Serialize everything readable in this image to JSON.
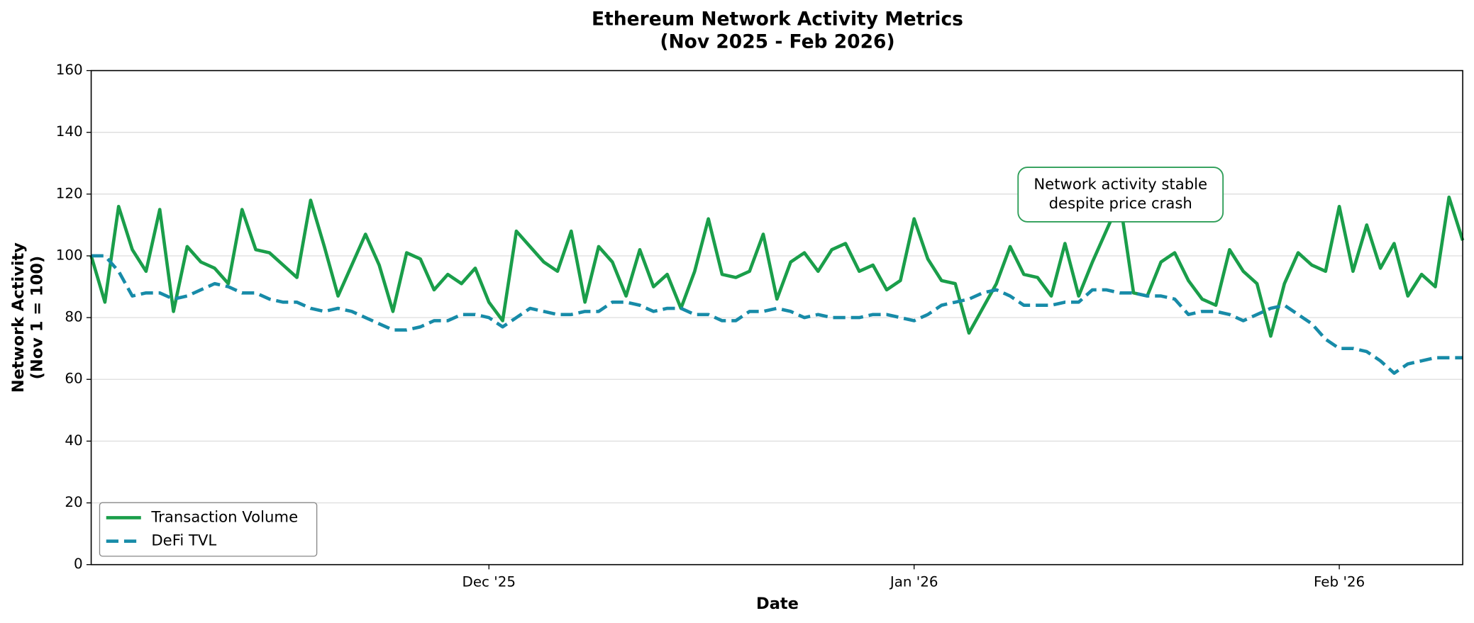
{
  "chart_data": {
    "type": "line",
    "title": "Ethereum Network Activity Metrics",
    "subtitle": "(Nov 2025 - Feb 2026)",
    "xlabel": "Date",
    "ylabel": [
      "Network Activity",
      "(Nov 1 = 100)"
    ],
    "annotation": [
      "Network activity stable",
      "despite price crash"
    ],
    "x": [
      0,
      1,
      2,
      3,
      4,
      5,
      6,
      7,
      8,
      9,
      10,
      11,
      12,
      13,
      14,
      15,
      16,
      17,
      18,
      19,
      20,
      21,
      22,
      23,
      24,
      25,
      26,
      27,
      28,
      29,
      30,
      31,
      32,
      33,
      34,
      35,
      36,
      37,
      38,
      39,
      40,
      41,
      42,
      43,
      44,
      45,
      46,
      47,
      48,
      49,
      50,
      51,
      52,
      53,
      54,
      55,
      56,
      57,
      58,
      59,
      60,
      61,
      62,
      63,
      64,
      65,
      66,
      67,
      68,
      69,
      70,
      71,
      72,
      73,
      74,
      75,
      76,
      77,
      78,
      79,
      80,
      81,
      82,
      83,
      84,
      85,
      86,
      87,
      88,
      89,
      90,
      91,
      92,
      93,
      94,
      95,
      96,
      97,
      98,
      99,
      100
    ],
    "xlim": [
      0,
      100
    ],
    "xticks": [
      {
        "value": 29,
        "label": "Dec '25"
      },
      {
        "value": 60,
        "label": "Jan '26"
      },
      {
        "value": 91,
        "label": "Feb '26"
      }
    ],
    "ylim": [
      0,
      160
    ],
    "yticks": [
      0,
      20,
      40,
      60,
      80,
      100,
      120,
      140,
      160
    ],
    "grid": true,
    "legend": "lower left",
    "series": [
      {
        "name": "Transaction Volume",
        "color": "#1a9e4a",
        "dash": false,
        "values": [
          100,
          85,
          116,
          102,
          95,
          115,
          82,
          103,
          98,
          96,
          91,
          115,
          102,
          101,
          97,
          93,
          118,
          103,
          87,
          97,
          107,
          97,
          82,
          101,
          99,
          89,
          94,
          91,
          96,
          85,
          79,
          108,
          103,
          98,
          95,
          108,
          85,
          103,
          98,
          87,
          102,
          90,
          94,
          83,
          95,
          112,
          94,
          93,
          95,
          107,
          86,
          98,
          101,
          95,
          102,
          104,
          95,
          97,
          89,
          92,
          112,
          99,
          92,
          91,
          75,
          83,
          91,
          103,
          94,
          93,
          87,
          104,
          87,
          98,
          108,
          118,
          88,
          87,
          98,
          101,
          92,
          86,
          84,
          102,
          95,
          91,
          74,
          91,
          101,
          97,
          95,
          116,
          95,
          110,
          96,
          104,
          87,
          94,
          90,
          119,
          105
        ]
      },
      {
        "name": "DeFi TVL",
        "color": "#178ba8",
        "dash": true,
        "values": [
          100,
          100,
          95,
          87,
          88,
          88,
          86,
          87,
          89,
          91,
          90,
          88,
          88,
          86,
          85,
          85,
          83,
          82,
          83,
          82,
          80,
          78,
          76,
          76,
          77,
          79,
          79,
          81,
          81,
          80,
          77,
          80,
          83,
          82,
          81,
          81,
          82,
          82,
          85,
          85,
          84,
          82,
          83,
          83,
          81,
          81,
          79,
          79,
          82,
          82,
          83,
          82,
          80,
          81,
          80,
          80,
          80,
          81,
          81,
          80,
          79,
          81,
          84,
          85,
          86,
          88,
          89,
          87,
          84,
          84,
          84,
          85,
          85,
          89,
          89,
          88,
          88,
          87,
          87,
          86,
          81,
          82,
          82,
          81,
          79,
          81,
          83,
          84,
          81,
          78,
          73,
          70,
          70,
          69,
          66,
          62,
          65,
          66,
          67,
          67,
          67
        ]
      }
    ]
  }
}
